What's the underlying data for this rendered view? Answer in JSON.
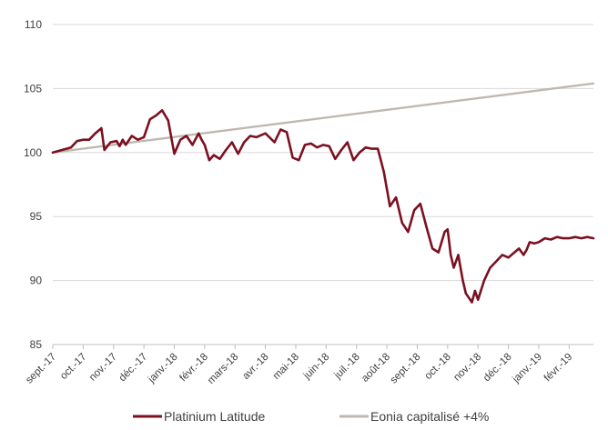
{
  "chart_data": {
    "type": "line",
    "title": "",
    "xlabel": "",
    "ylabel": "",
    "ylim": [
      85,
      110
    ],
    "yticks": [
      "85",
      "90",
      "95",
      "100",
      "105",
      "110"
    ],
    "xticks": [
      "sept.-17",
      "oct.-17",
      "nov.-17",
      "déc.-17",
      "janv.-18",
      "févr.-18",
      "mars-18",
      "avr.-18",
      "mai-18",
      "juin-18",
      "juil.-18",
      "août-18",
      "sept.-18",
      "oct.-18",
      "nov.-18",
      "déc.-18",
      "janv.-19",
      "févr.-19"
    ],
    "x_range": [
      "sept.-17",
      "févr.-19"
    ],
    "grid": "horizontal",
    "legend_position": "bottom",
    "colors": {
      "platinium": "#7b1020",
      "eonia": "#bfb8b0"
    },
    "series": [
      {
        "name": "Platinium Latitude",
        "x": [
          0.0,
          0.3,
          0.6,
          0.8,
          1.0,
          1.2,
          1.4,
          1.6,
          1.7,
          1.9,
          2.1,
          2.2,
          2.3,
          2.4,
          2.6,
          2.8,
          3.0,
          3.2,
          3.4,
          3.6,
          3.8,
          4.0,
          4.2,
          4.4,
          4.6,
          4.8,
          4.9,
          5.0,
          5.15,
          5.3,
          5.5,
          5.7,
          5.9,
          6.1,
          6.3,
          6.5,
          6.7,
          7.0,
          7.3,
          7.5,
          7.7,
          7.9,
          8.1,
          8.3,
          8.5,
          8.7,
          8.9,
          9.1,
          9.3,
          9.5,
          9.7,
          9.9,
          10.1,
          10.3,
          10.5,
          10.7,
          10.9,
          11.1,
          11.3,
          11.5,
          11.7,
          11.9,
          12.1,
          12.3,
          12.5,
          12.7,
          12.9,
          13.0,
          13.1,
          13.2,
          13.35,
          13.5,
          13.6,
          13.8,
          13.9,
          14.0,
          14.2,
          14.4,
          14.6,
          14.8,
          15.0,
          15.2,
          15.35,
          15.5,
          15.6,
          15.7,
          15.85,
          16.0,
          16.2,
          16.4,
          16.6,
          16.8,
          17.0,
          17.2,
          17.4,
          17.6,
          17.8
        ],
        "values": [
          100.0,
          100.2,
          100.4,
          100.9,
          101.0,
          101.0,
          101.5,
          101.9,
          100.2,
          100.8,
          100.9,
          100.5,
          101.0,
          100.6,
          101.3,
          101.0,
          101.2,
          102.6,
          102.9,
          103.3,
          102.5,
          99.9,
          101.0,
          101.3,
          100.6,
          101.5,
          101.0,
          100.6,
          99.4,
          99.8,
          99.5,
          100.2,
          100.8,
          99.9,
          100.8,
          101.3,
          101.2,
          101.5,
          100.8,
          101.8,
          101.6,
          99.6,
          99.4,
          100.6,
          100.7,
          100.4,
          100.6,
          100.5,
          99.5,
          100.2,
          100.8,
          99.4,
          100.0,
          100.4,
          100.3,
          100.3,
          98.5,
          95.8,
          96.5,
          94.5,
          93.8,
          95.5,
          96.0,
          94.2,
          92.5,
          92.2,
          93.8,
          94.0,
          92.0,
          91.0,
          92.0,
          90.0,
          89.0,
          88.3,
          89.2,
          88.5,
          90.0,
          91.0,
          91.5,
          92.0,
          91.8,
          92.2,
          92.5,
          92.0,
          92.4,
          93.0,
          92.9,
          93.0,
          93.3,
          93.2,
          93.4,
          93.3,
          93.3,
          93.4,
          93.3,
          93.4,
          93.3
        ]
      },
      {
        "name": "Eonia capitalisé +4%",
        "x": [
          0,
          17.8
        ],
        "values": [
          100.0,
          105.4
        ]
      }
    ]
  }
}
